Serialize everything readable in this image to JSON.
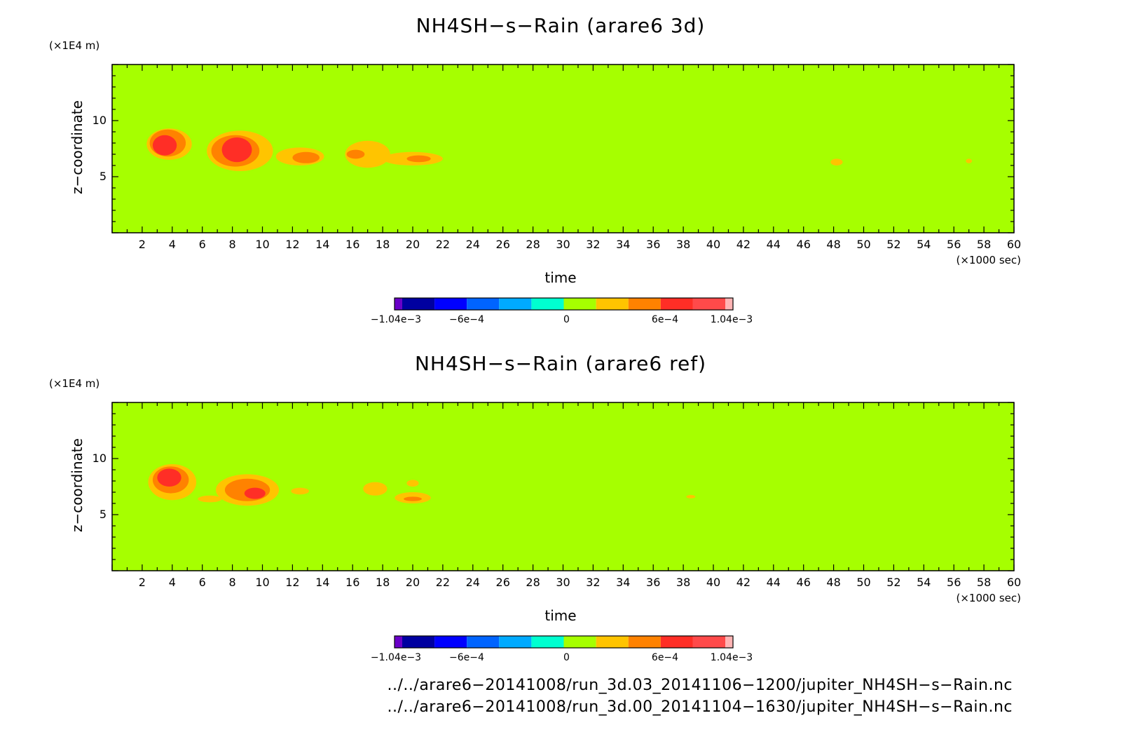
{
  "chart_data": [
    {
      "type": "heatmap",
      "title": "NH4SH−s−Rain (arare6 3d)",
      "xlabel": "time",
      "xunit": "(×1000 sec)",
      "ylabel": "z−coordinate",
      "yunit": "(×1E4 m)",
      "xlim": [
        0,
        60
      ],
      "ylim": [
        0,
        15
      ],
      "xticks": [
        2,
        4,
        6,
        8,
        10,
        12,
        14,
        16,
        18,
        20,
        22,
        24,
        26,
        28,
        30,
        32,
        34,
        36,
        38,
        40,
        42,
        44,
        46,
        48,
        50,
        52,
        54,
        56,
        58,
        60
      ],
      "yticks": [
        5,
        10
      ],
      "background_color": "#a6ff00",
      "features": [
        {
          "cx": 3.8,
          "cy": 7.9,
          "rx": 1.5,
          "ry": 1.4,
          "color": "#ffc400"
        },
        {
          "cx": 3.7,
          "cy": 8.0,
          "rx": 1.2,
          "ry": 1.2,
          "color": "#ff8200"
        },
        {
          "cx": 3.5,
          "cy": 7.8,
          "rx": 0.8,
          "ry": 0.9,
          "color": "#ff2e26"
        },
        {
          "cx": 8.5,
          "cy": 7.3,
          "rx": 2.2,
          "ry": 1.8,
          "color": "#ffc400"
        },
        {
          "cx": 8.2,
          "cy": 7.3,
          "rx": 1.6,
          "ry": 1.4,
          "color": "#ff8200"
        },
        {
          "cx": 8.3,
          "cy": 7.4,
          "rx": 1.0,
          "ry": 1.1,
          "color": "#ff2e26"
        },
        {
          "cx": 12.5,
          "cy": 6.8,
          "rx": 1.6,
          "ry": 0.8,
          "color": "#ffc400"
        },
        {
          "cx": 12.9,
          "cy": 6.7,
          "rx": 0.9,
          "ry": 0.5,
          "color": "#ff8200"
        },
        {
          "cx": 17.0,
          "cy": 7.0,
          "rx": 1.5,
          "ry": 1.2,
          "color": "#ffc400"
        },
        {
          "cx": 20.0,
          "cy": 6.6,
          "rx": 2.0,
          "ry": 0.6,
          "color": "#ffc400"
        },
        {
          "cx": 16.2,
          "cy": 7.0,
          "rx": 0.6,
          "ry": 0.4,
          "color": "#ff8200"
        },
        {
          "cx": 20.4,
          "cy": 6.6,
          "rx": 0.8,
          "ry": 0.3,
          "color": "#ff8200"
        },
        {
          "cx": 48.2,
          "cy": 6.3,
          "rx": 0.4,
          "ry": 0.3,
          "color": "#ffc400"
        },
        {
          "cx": 57.0,
          "cy": 6.4,
          "rx": 0.2,
          "ry": 0.2,
          "color": "#ffc400"
        }
      ]
    },
    {
      "type": "heatmap",
      "title": "NH4SH−s−Rain (arare6 ref)",
      "xlabel": "time",
      "xunit": "(×1000 sec)",
      "ylabel": "z−coordinate",
      "yunit": "(×1E4 m)",
      "xlim": [
        0,
        60
      ],
      "ylim": [
        0,
        15
      ],
      "xticks": [
        2,
        4,
        6,
        8,
        10,
        12,
        14,
        16,
        18,
        20,
        22,
        24,
        26,
        28,
        30,
        32,
        34,
        36,
        38,
        40,
        42,
        44,
        46,
        48,
        50,
        52,
        54,
        56,
        58,
        60
      ],
      "yticks": [
        5,
        10
      ],
      "background_color": "#a6ff00",
      "features": [
        {
          "cx": 4.0,
          "cy": 7.9,
          "rx": 1.6,
          "ry": 1.6,
          "color": "#ffc400"
        },
        {
          "cx": 3.9,
          "cy": 8.1,
          "rx": 1.2,
          "ry": 1.2,
          "color": "#ff8200"
        },
        {
          "cx": 3.8,
          "cy": 8.3,
          "rx": 0.8,
          "ry": 0.8,
          "color": "#ff2e26"
        },
        {
          "cx": 9.0,
          "cy": 7.2,
          "rx": 2.1,
          "ry": 1.4,
          "color": "#ffc400"
        },
        {
          "cx": 9.0,
          "cy": 7.2,
          "rx": 1.5,
          "ry": 1.0,
          "color": "#ff8200"
        },
        {
          "cx": 9.5,
          "cy": 6.9,
          "rx": 0.7,
          "ry": 0.5,
          "color": "#ff2e26"
        },
        {
          "cx": 6.5,
          "cy": 6.4,
          "rx": 0.8,
          "ry": 0.3,
          "color": "#ffc400"
        },
        {
          "cx": 12.5,
          "cy": 7.1,
          "rx": 0.6,
          "ry": 0.3,
          "color": "#ffc400"
        },
        {
          "cx": 17.5,
          "cy": 7.3,
          "rx": 0.8,
          "ry": 0.6,
          "color": "#ffc400"
        },
        {
          "cx": 20.0,
          "cy": 6.5,
          "rx": 1.2,
          "ry": 0.5,
          "color": "#ffc400"
        },
        {
          "cx": 20.0,
          "cy": 6.4,
          "rx": 0.6,
          "ry": 0.2,
          "color": "#ff8200"
        },
        {
          "cx": 20.0,
          "cy": 7.8,
          "rx": 0.4,
          "ry": 0.3,
          "color": "#ffc400"
        },
        {
          "cx": 38.5,
          "cy": 6.6,
          "rx": 0.3,
          "ry": 0.15,
          "color": "#ffc400"
        }
      ]
    }
  ],
  "colorbar": {
    "colors": [
      "#6a00c8",
      "#0000a0",
      "#0000ff",
      "#0064ff",
      "#00aaff",
      "#00ffd0",
      "#a6ff00",
      "#ffc400",
      "#ff8200",
      "#ff2e26",
      "#ff4a4a",
      "#ffb4b4"
    ],
    "tick_labels": [
      "−1.04e−3",
      "−6e−4",
      "0",
      "6e−4",
      "1.04e−3"
    ]
  },
  "footnotes": [
    "../../arare6−20141008/run_3d.03_20141106−1200/jupiter_NH4SH−s−Rain.nc",
    "../../arare6−20141008/run_3d.00_20141104−1630/jupiter_NH4SH−s−Rain.nc"
  ]
}
